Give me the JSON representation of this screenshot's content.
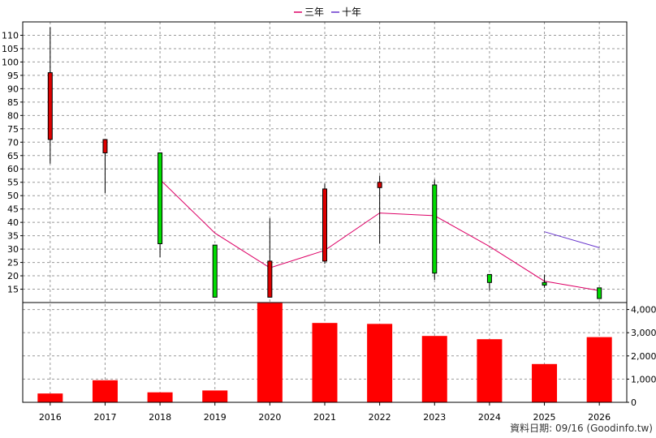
{
  "legend": {
    "items": [
      {
        "name": "三年",
        "color": "#dd0066"
      },
      {
        "name": "十年",
        "color": "#6633cc"
      }
    ]
  },
  "credit": "資料日期: 09/16  (Goodinfo.tw)",
  "chart_data": {
    "type": "candlestick+bar",
    "categories": [
      "2016",
      "2017",
      "2018",
      "2019",
      "2020",
      "2021",
      "2022",
      "2023",
      "2024",
      "2025",
      "2026"
    ],
    "price_axis": {
      "ylim": [
        10,
        115
      ],
      "ticks": [
        15,
        20,
        25,
        30,
        35,
        40,
        45,
        50,
        55,
        60,
        65,
        70,
        75,
        80,
        85,
        90,
        95,
        100,
        105,
        110
      ],
      "grid": true
    },
    "candles": [
      {
        "x": "2016",
        "open": 71,
        "close": 96,
        "high": 113,
        "low": 62
      },
      {
        "x": "2017",
        "open": 66,
        "close": 71,
        "high": 71,
        "low": 51
      },
      {
        "x": "2018",
        "open": 66,
        "close": 32,
        "high": 66,
        "low": 27
      },
      {
        "x": "2019",
        "open": 31.5,
        "close": 12,
        "high": 31.5,
        "low": 12
      },
      {
        "x": "2020",
        "open": 12,
        "close": 25.5,
        "high": 41.5,
        "low": 12
      },
      {
        "x": "2021",
        "open": 25.5,
        "close": 52.5,
        "high": 54.5,
        "low": 24.5
      },
      {
        "x": "2022",
        "open": 53,
        "close": 55,
        "high": 57.5,
        "low": 32
      },
      {
        "x": "2023",
        "open": 54,
        "close": 21,
        "high": 56,
        "low": 18.5
      },
      {
        "x": "2024",
        "open": 20.5,
        "close": 17.5,
        "high": 20.5,
        "low": 14.5
      },
      {
        "x": "2025",
        "open": 17.5,
        "close": 16.5,
        "high": 20.5,
        "low": 15.5
      },
      {
        "x": "2026",
        "open": 15.5,
        "close": 11.5,
        "high": 15.5,
        "low": 11.5
      }
    ],
    "series": [
      {
        "name": "三年",
        "color": "#dd0066",
        "values": [
          null,
          null,
          56,
          36,
          23,
          29.5,
          43.5,
          42.5,
          31,
          18,
          14.5
        ]
      },
      {
        "name": "十年",
        "color": "#6633cc",
        "values": [
          null,
          null,
          null,
          null,
          null,
          null,
          null,
          null,
          null,
          36.5,
          30.5
        ]
      }
    ],
    "volume": {
      "ylim": [
        0,
        4300
      ],
      "ticks": [
        0,
        1000,
        2000,
        3000,
        4000
      ],
      "tick_labels": [
        "0",
        "1,000",
        "2,000",
        "3,000",
        "4,000"
      ],
      "color": "#ff0000",
      "values": [
        380,
        950,
        430,
        510,
        4280,
        3420,
        3380,
        2860,
        2720,
        1650,
        2810
      ]
    }
  }
}
